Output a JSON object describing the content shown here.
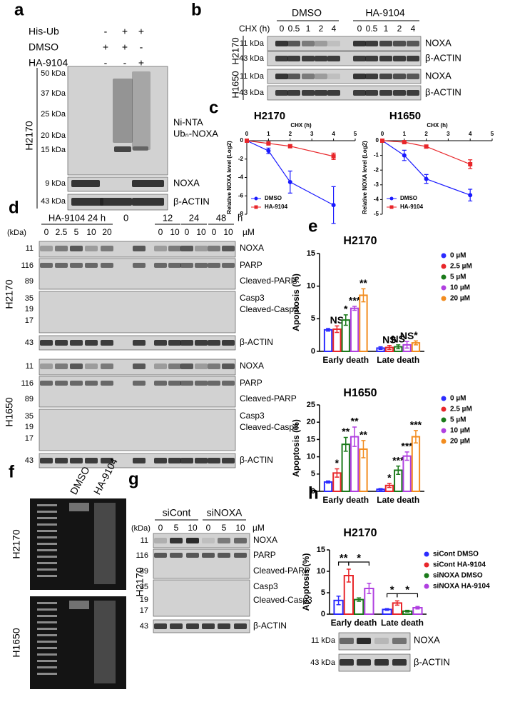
{
  "panel_a": {
    "letter": "a",
    "header_rows": [
      {
        "label": "His-Ub",
        "marks": [
          "-",
          "+",
          "+"
        ]
      },
      {
        "label": "DMSO",
        "marks": [
          "+",
          "+",
          "-"
        ]
      },
      {
        "label": "HA-9104",
        "marks": [
          "-",
          "-",
          "+"
        ]
      }
    ],
    "cell_line": "H2170",
    "mw": [
      "50 kDa",
      "37 kDa",
      "25 kDa",
      "20 kDa",
      "15 kDa",
      "9 kDa",
      "43 kDa"
    ],
    "right_labels": [
      "Ni-NTA",
      "Ubₙ-NOXA",
      "NOXA",
      "β-ACTIN"
    ]
  },
  "panel_b": {
    "letter": "b",
    "chx_label": "CHX (h)",
    "groups": [
      {
        "name": "DMSO",
        "times": [
          "0",
          "0.5",
          "1",
          "2",
          "4"
        ]
      },
      {
        "name": "HA-9104",
        "times": [
          "0",
          "0.5",
          "1",
          "2",
          "4"
        ]
      }
    ],
    "cell_lines": [
      {
        "name": "H2170",
        "mw": [
          "11 kDa",
          "43 kDa"
        ],
        "proteins": [
          "NOXA",
          "β-ACTIN"
        ]
      },
      {
        "name": "H1650",
        "mw": [
          "11 kDa",
          "43 kDa"
        ],
        "proteins": [
          "NOXA",
          "β-ACTIN"
        ]
      }
    ]
  },
  "panel_c": {
    "letter": "c"
  },
  "panel_d": {
    "letter": "d",
    "header": "HA-9104 24 h",
    "control": "0",
    "time_groups": [
      {
        "time": "12",
        "conc": [
          "0",
          "10"
        ]
      },
      {
        "time": "24",
        "conc": [
          "0",
          "10"
        ]
      },
      {
        "time": "48",
        "conc": [
          "0",
          "10"
        ]
      }
    ],
    "time_unit": "h",
    "kda_label": "(kDa)",
    "concentrations": [
      "0",
      "2.5",
      "5",
      "10",
      "20"
    ],
    "conc_unit": "µM",
    "cell_lines": [
      {
        "name": "H2170",
        "mw": [
          "11",
          "116",
          "89",
          "35",
          "19",
          "17",
          "43"
        ],
        "proteins": [
          "NOXA",
          "PARP",
          "Cleaved-PARP",
          "Casp3",
          "Cleaved-Casp3",
          "β-ACTIN"
        ]
      },
      {
        "name": "H1650",
        "mw": [
          "11",
          "116",
          "89",
          "35",
          "19",
          "17",
          "43"
        ],
        "proteins": [
          "NOXA",
          "PARP",
          "Cleaved-PARP",
          "Casp3",
          "Cleaved-Casp3",
          "β-ACTIN"
        ]
      }
    ]
  },
  "panel_e": {
    "letter": "e"
  },
  "panel_f": {
    "letter": "f",
    "lanes": [
      "DMSO",
      "HA-9104"
    ],
    "cell_lines": [
      "H2170",
      "H1650"
    ]
  },
  "panel_g": {
    "letter": "g",
    "kda_label": "(kDa)",
    "groups": [
      {
        "name": "siCont",
        "conc": [
          "0",
          "5",
          "10"
        ]
      },
      {
        "name": "siNOXA",
        "conc": [
          "0",
          "5",
          "10"
        ]
      }
    ],
    "conc_unit": "µM",
    "cell_line": "H2170",
    "mw": [
      "11",
      "116",
      "89",
      "35",
      "19",
      "17",
      "43"
    ],
    "proteins": [
      "NOXA",
      "PARP",
      "Cleaved-PARP",
      "Casp3",
      "Cleaved-Casp3",
      "β-ACTIN"
    ]
  },
  "panel_h": {
    "letter": "h",
    "blot": {
      "mw": [
        "11 kDa",
        "43 kDa"
      ],
      "proteins": [
        "NOXA",
        "β-ACTIN"
      ]
    }
  },
  "chart_data": [
    {
      "type": "line",
      "title": "H2170",
      "xlabel": "CHX (h)",
      "ylabel": "Relative NOXA level (Log2)",
      "x": [
        0,
        1,
        2,
        4
      ],
      "xlim": [
        0,
        5
      ],
      "xticks": [
        0,
        1,
        2,
        3,
        4,
        5
      ],
      "ylim": [
        -8,
        0
      ],
      "yticks": [
        0,
        -2,
        -4,
        -6,
        -8
      ],
      "legend": "lower left",
      "series": [
        {
          "name": "DMSO",
          "color": "#1a1aff",
          "values": [
            0,
            -1.1,
            -4.5,
            -7.0
          ],
          "errors": [
            0,
            0.3,
            1.2,
            2.0
          ]
        },
        {
          "name": "HA-9104",
          "color": "#e8262a",
          "values": [
            0,
            -0.3,
            -0.6,
            -1.7
          ],
          "errors": [
            0,
            0.1,
            0.15,
            0.35
          ]
        }
      ]
    },
    {
      "type": "line",
      "title": "H1650",
      "xlabel": "CHX (h)",
      "ylabel": "Relative NOXA level (Log2)",
      "x": [
        0,
        1,
        2,
        4
      ],
      "xlim": [
        0,
        5
      ],
      "xticks": [
        0,
        1,
        2,
        3,
        4,
        5
      ],
      "ylim": [
        -5,
        0
      ],
      "yticks": [
        0,
        -1,
        -2,
        -3,
        -4,
        -5
      ],
      "legend": "lower left",
      "series": [
        {
          "name": "DMSO",
          "color": "#1a1aff",
          "values": [
            0,
            -1.0,
            -2.6,
            -3.7
          ],
          "errors": [
            0,
            0.35,
            0.3,
            0.4
          ]
        },
        {
          "name": "HA-9104",
          "color": "#e8262a",
          "values": [
            0,
            -0.1,
            -0.4,
            -1.6
          ],
          "errors": [
            0,
            0.05,
            0.1,
            0.3
          ]
        }
      ]
    },
    {
      "type": "bar",
      "title": "H2170",
      "ylabel": "Apoptosis (%)",
      "categories": [
        "Early death",
        "Late death"
      ],
      "ylim": [
        0,
        15
      ],
      "yticks": [
        0,
        5,
        10,
        15
      ],
      "legend": "upper right",
      "series": [
        {
          "name": "0 µM",
          "color": "#2b2bff",
          "values": [
            3.3,
            0.5
          ],
          "errors": [
            0.2,
            0.2
          ],
          "significance": [
            null,
            null
          ]
        },
        {
          "name": "2.5 µM",
          "color": "#e8262a",
          "values": [
            3.4,
            0.6
          ],
          "errors": [
            0.5,
            0.3
          ],
          "significance": [
            "NS",
            "NS"
          ]
        },
        {
          "name": "5 µM",
          "color": "#1a7a1a",
          "values": [
            4.8,
            0.7
          ],
          "errors": [
            0.8,
            0.3
          ],
          "significance": [
            "*",
            "NS"
          ]
        },
        {
          "name": "10 µM",
          "color": "#b040e0",
          "values": [
            6.6,
            1.0
          ],
          "errors": [
            0.3,
            0.5
          ],
          "significance": [
            "***",
            "NS"
          ]
        },
        {
          "name": "20 µM",
          "color": "#f28c1e",
          "values": [
            8.6,
            1.3
          ],
          "errors": [
            1.0,
            0.3
          ],
          "significance": [
            "**",
            "*"
          ]
        }
      ]
    },
    {
      "type": "bar",
      "title": "H1650",
      "ylabel": "Apoptosis (%)",
      "categories": [
        "Early death",
        "Late death"
      ],
      "ylim": [
        0,
        25
      ],
      "yticks": [
        0,
        5,
        10,
        15,
        20,
        25
      ],
      "legend": "upper right",
      "series": [
        {
          "name": "0 µM",
          "color": "#2b2bff",
          "values": [
            2.7,
            0.6
          ],
          "errors": [
            0.3,
            0.2
          ],
          "significance": [
            null,
            null
          ]
        },
        {
          "name": "2.5 µM",
          "color": "#e8262a",
          "values": [
            5.3,
            1.7
          ],
          "errors": [
            1.2,
            0.6
          ],
          "significance": [
            "*",
            "*"
          ]
        },
        {
          "name": "5 µM",
          "color": "#1a7a1a",
          "values": [
            13.6,
            6.1
          ],
          "errors": [
            2.0,
            1.2
          ],
          "significance": [
            "**",
            "***"
          ]
        },
        {
          "name": "10 µM",
          "color": "#b040e0",
          "values": [
            15.8,
            10.2
          ],
          "errors": [
            2.8,
            1.2
          ],
          "significance": [
            "**",
            "***"
          ]
        },
        {
          "name": "20 µM",
          "color": "#f28c1e",
          "values": [
            12.2,
            15.8
          ],
          "errors": [
            2.5,
            1.8
          ],
          "significance": [
            "**",
            "***"
          ]
        }
      ]
    },
    {
      "type": "bar",
      "title": "H2170",
      "ylabel": "Apoptosis (%)",
      "categories": [
        "Early death",
        "Late death"
      ],
      "ylim": [
        0,
        15
      ],
      "yticks": [
        0,
        5,
        10,
        15
      ],
      "legend": "upper right",
      "series": [
        {
          "name": "siCont DMSO",
          "color": "#2b2bff",
          "values": [
            3.2,
            1.1
          ],
          "errors": [
            1.0,
            0.2
          ]
        },
        {
          "name": "siCont HA-9104",
          "color": "#e8262a",
          "values": [
            9.0,
            2.6
          ],
          "errors": [
            1.5,
            0.5
          ]
        },
        {
          "name": "siNOXA DMSO",
          "color": "#1a7a1a",
          "values": [
            3.4,
            0.7
          ],
          "errors": [
            0.4,
            0.2
          ]
        },
        {
          "name": "siNOXA HA-9104",
          "color": "#b040e0",
          "values": [
            6.0,
            1.5
          ],
          "errors": [
            1.2,
            0.3
          ]
        }
      ],
      "brackets": [
        [
          "**",
          "*"
        ],
        [
          "*",
          "*"
        ]
      ]
    }
  ]
}
